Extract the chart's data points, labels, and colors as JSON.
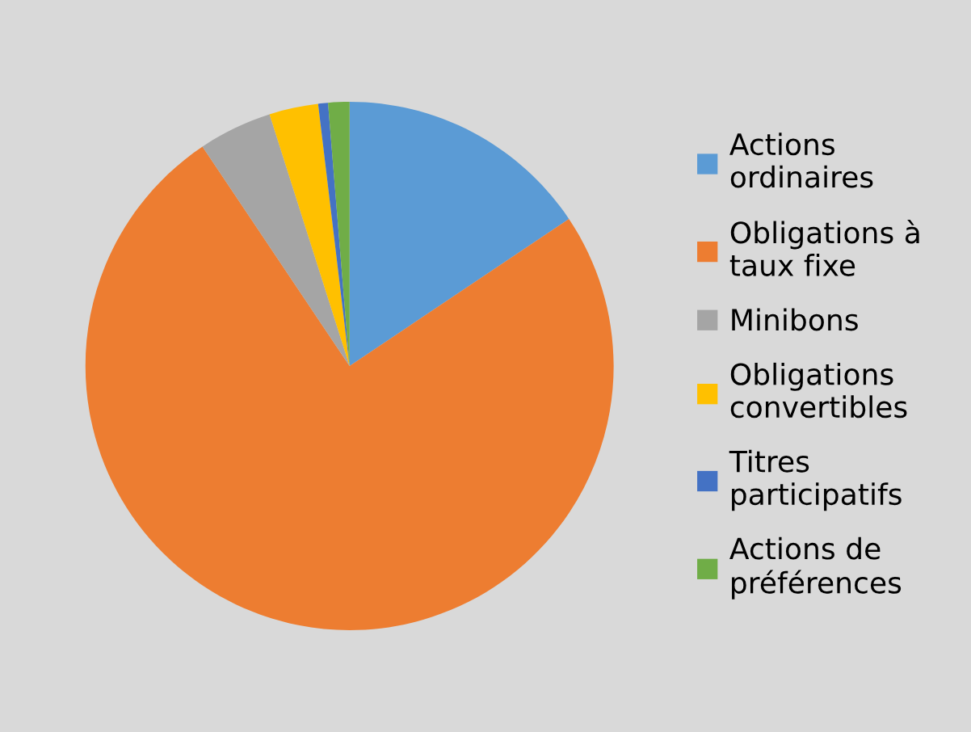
{
  "chart_data": {
    "type": "pie",
    "categories": [
      "Actions\nordinaires",
      "Obligations à\ntaux fixe",
      "Minibons",
      "Obligations\nconvertibles",
      "Titres\nparticipatifs",
      "Actions de\npréférences"
    ],
    "values": [
      15.6,
      75.0,
      4.5,
      3.0,
      0.6,
      1.3
    ],
    "colors": [
      "#5b9bd5",
      "#ed7d31",
      "#a5a5a5",
      "#ffc000",
      "#4472c4",
      "#70ad47"
    ],
    "legend": "right"
  }
}
